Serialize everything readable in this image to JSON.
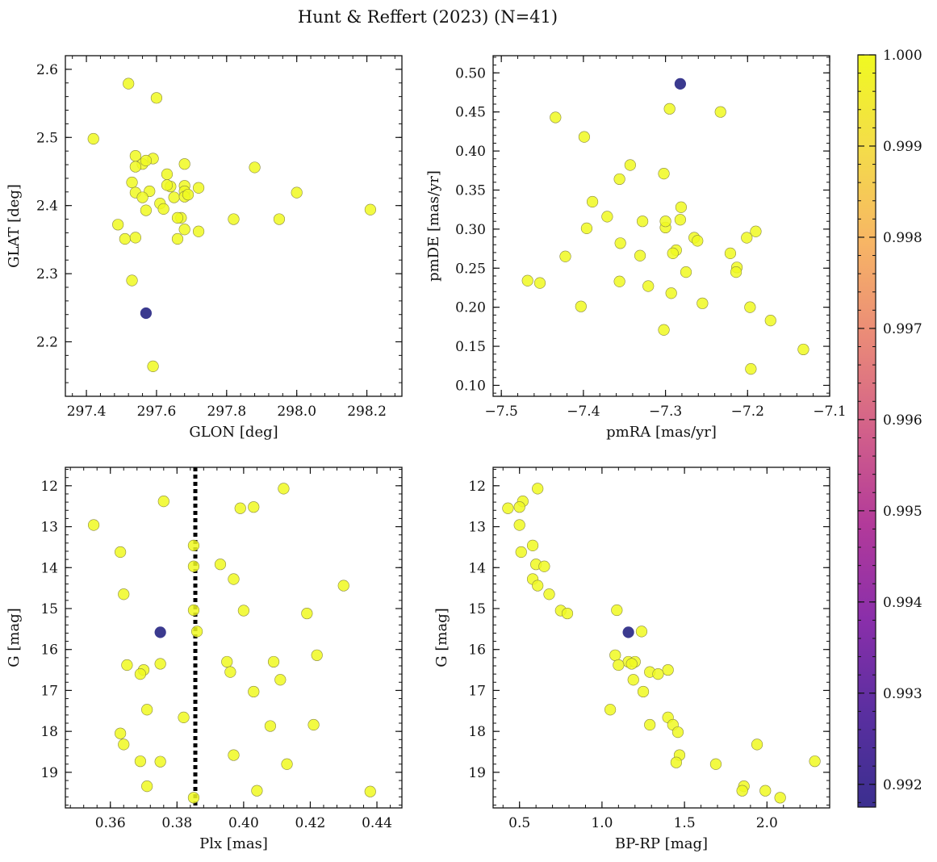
{
  "figure": {
    "title": "Hunt & Reffert (2023) (N=41)"
  },
  "colors": {
    "member_high": "#f0f921",
    "member_low": "#3b3a8f",
    "edge": "#8a8a40",
    "guide_line": "#000000",
    "colormap": [
      "#3b2f8f",
      "#5a2fa0",
      "#8a2faa",
      "#b23a9a",
      "#d2608a",
      "#ea8a78",
      "#f7b565",
      "#f4dc4a",
      "#f0f921"
    ]
  },
  "chart_data": [
    {
      "id": "sky",
      "type": "scatter",
      "xlabel": "GLON [deg]",
      "ylabel": "GLAT [deg]",
      "xlim": [
        297.34,
        298.3
      ],
      "ylim": [
        2.12,
        2.62
      ],
      "xticks": [
        297.4,
        297.6,
        297.8,
        298.0,
        298.2
      ],
      "yticks": [
        2.2,
        2.3,
        2.4,
        2.5,
        2.6
      ],
      "xtick_labels": [
        "297.4",
        "297.6",
        "297.8",
        "298.0",
        "298.2"
      ],
      "ytick_labels": [
        "2.2",
        "2.3",
        "2.4",
        "2.5",
        "2.6"
      ],
      "points": [
        [
          297.42,
          2.498,
          1.0
        ],
        [
          297.52,
          2.579,
          1.0
        ],
        [
          297.6,
          2.558,
          1.0
        ],
        [
          297.54,
          2.473,
          1.0
        ],
        [
          297.59,
          2.469,
          1.0
        ],
        [
          297.56,
          2.461,
          1.0
        ],
        [
          297.54,
          2.457,
          1.0
        ],
        [
          297.68,
          2.461,
          1.0
        ],
        [
          297.88,
          2.456,
          1.0
        ],
        [
          297.63,
          2.446,
          1.0
        ],
        [
          297.53,
          2.434,
          1.0
        ],
        [
          297.72,
          2.426,
          1.0
        ],
        [
          297.64,
          2.428,
          1.0
        ],
        [
          297.68,
          2.429,
          1.0
        ],
        [
          297.58,
          2.421,
          1.0
        ],
        [
          297.54,
          2.419,
          1.0
        ],
        [
          298.0,
          2.419,
          1.0
        ],
        [
          297.68,
          2.421,
          1.0
        ],
        [
          297.65,
          2.412,
          1.0
        ],
        [
          297.56,
          2.412,
          1.0
        ],
        [
          297.68,
          2.413,
          1.0
        ],
        [
          297.61,
          2.403,
          1.0
        ],
        [
          297.62,
          2.395,
          1.0
        ],
        [
          297.57,
          2.393,
          1.0
        ],
        [
          298.21,
          2.394,
          1.0
        ],
        [
          297.67,
          2.382,
          1.0
        ],
        [
          297.66,
          2.382,
          1.0
        ],
        [
          297.82,
          2.38,
          1.0
        ],
        [
          297.95,
          2.38,
          1.0
        ],
        [
          297.49,
          2.372,
          1.0
        ],
        [
          297.68,
          2.365,
          1.0
        ],
        [
          297.72,
          2.362,
          1.0
        ],
        [
          297.51,
          2.351,
          1.0
        ],
        [
          297.54,
          2.353,
          1.0
        ],
        [
          297.66,
          2.351,
          1.0
        ],
        [
          297.53,
          2.29,
          1.0
        ],
        [
          297.59,
          2.164,
          1.0
        ],
        [
          297.63,
          2.43,
          1.0
        ],
        [
          297.57,
          2.466,
          1.0
        ],
        [
          297.69,
          2.416,
          1.0
        ],
        [
          297.57,
          2.242,
          0.99
        ]
      ]
    },
    {
      "id": "pm",
      "type": "scatter",
      "xlabel": "pmRA [mas/yr]",
      "ylabel": "pmDE [mas/yr]",
      "xlim": [
        -7.51,
        -7.1
      ],
      "ylim": [
        0.086,
        0.522
      ],
      "xticks": [
        -7.5,
        -7.4,
        -7.3,
        -7.2,
        -7.1
      ],
      "yticks": [
        0.1,
        0.15,
        0.2,
        0.25,
        0.3,
        0.35,
        0.4,
        0.45,
        0.5
      ],
      "xtick_labels": [
        "−7.5",
        "−7.4",
        "−7.3",
        "−7.2",
        "−7.1"
      ],
      "ytick_labels": [
        "0.10",
        "0.15",
        "0.20",
        "0.25",
        "0.30",
        "0.35",
        "0.40",
        "0.45",
        "0.50"
      ],
      "points": [
        [
          -7.295,
          0.454,
          1.0
        ],
        [
          -7.233,
          0.45,
          1.0
        ],
        [
          -7.434,
          0.443,
          1.0
        ],
        [
          -7.399,
          0.418,
          1.0
        ],
        [
          -7.343,
          0.382,
          1.0
        ],
        [
          -7.302,
          0.371,
          1.0
        ],
        [
          -7.356,
          0.364,
          1.0
        ],
        [
          -7.389,
          0.335,
          1.0
        ],
        [
          -7.281,
          0.328,
          1.0
        ],
        [
          -7.371,
          0.316,
          1.0
        ],
        [
          -7.328,
          0.31,
          1.0
        ],
        [
          -7.282,
          0.312,
          1.0
        ],
        [
          -7.3,
          0.302,
          1.0
        ],
        [
          -7.396,
          0.301,
          1.0
        ],
        [
          -7.19,
          0.297,
          1.0
        ],
        [
          -7.265,
          0.289,
          1.0
        ],
        [
          -7.201,
          0.289,
          1.0
        ],
        [
          -7.261,
          0.285,
          1.0
        ],
        [
          -7.355,
          0.282,
          1.0
        ],
        [
          -7.287,
          0.273,
          1.0
        ],
        [
          -7.291,
          0.269,
          1.0
        ],
        [
          -7.221,
          0.269,
          1.0
        ],
        [
          -7.331,
          0.266,
          1.0
        ],
        [
          -7.422,
          0.265,
          1.0
        ],
        [
          -7.213,
          0.251,
          1.0
        ],
        [
          -7.214,
          0.245,
          1.0
        ],
        [
          -7.275,
          0.245,
          1.0
        ],
        [
          -7.468,
          0.234,
          1.0
        ],
        [
          -7.356,
          0.233,
          1.0
        ],
        [
          -7.453,
          0.231,
          1.0
        ],
        [
          -7.321,
          0.227,
          1.0
        ],
        [
          -7.293,
          0.218,
          1.0
        ],
        [
          -7.255,
          0.205,
          1.0
        ],
        [
          -7.403,
          0.201,
          1.0
        ],
        [
          -7.197,
          0.2,
          1.0
        ],
        [
          -7.172,
          0.183,
          1.0
        ],
        [
          -7.302,
          0.171,
          1.0
        ],
        [
          -7.132,
          0.146,
          1.0
        ],
        [
          -7.196,
          0.121,
          1.0
        ],
        [
          -7.3,
          0.31,
          1.0
        ],
        [
          -7.282,
          0.486,
          0.99
        ]
      ]
    },
    {
      "id": "plx",
      "type": "scatter",
      "xlabel": "Plx [mas]",
      "ylabel": "G [mag]",
      "xlim": [
        0.3465,
        0.4475
      ],
      "ylim": [
        19.87,
        11.55
      ],
      "xticks": [
        0.36,
        0.38,
        0.4,
        0.42,
        0.44
      ],
      "yticks": [
        12,
        13,
        14,
        15,
        16,
        17,
        18,
        19
      ],
      "xtick_labels": [
        "0.36",
        "0.38",
        "0.40",
        "0.42",
        "0.44"
      ],
      "ytick_labels": [
        "12",
        "13",
        "14",
        "15",
        "16",
        "17",
        "18",
        "19"
      ],
      "vline": 0.3855,
      "points": [
        [
          0.412,
          12.07,
          1.0
        ],
        [
          0.376,
          12.38,
          1.0
        ],
        [
          0.399,
          12.55,
          1.0
        ],
        [
          0.403,
          12.52,
          1.0
        ],
        [
          0.355,
          12.96,
          1.0
        ],
        [
          0.385,
          13.46,
          1.0
        ],
        [
          0.363,
          13.62,
          1.0
        ],
        [
          0.393,
          13.92,
          1.0
        ],
        [
          0.385,
          13.97,
          1.0
        ],
        [
          0.397,
          14.28,
          1.0
        ],
        [
          0.43,
          14.44,
          1.0
        ],
        [
          0.364,
          14.65,
          1.0
        ],
        [
          0.385,
          15.04,
          1.0
        ],
        [
          0.4,
          15.05,
          1.0
        ],
        [
          0.419,
          15.12,
          1.0
        ],
        [
          0.386,
          15.56,
          1.0
        ],
        [
          0.422,
          16.14,
          1.0
        ],
        [
          0.395,
          16.3,
          1.0
        ],
        [
          0.409,
          16.3,
          1.0
        ],
        [
          0.375,
          16.35,
          1.0
        ],
        [
          0.365,
          16.38,
          1.0
        ],
        [
          0.37,
          16.5,
          1.0
        ],
        [
          0.396,
          16.55,
          1.0
        ],
        [
          0.369,
          16.6,
          1.0
        ],
        [
          0.411,
          16.74,
          1.0
        ],
        [
          0.403,
          17.03,
          1.0
        ],
        [
          0.371,
          17.47,
          1.0
        ],
        [
          0.382,
          17.66,
          1.0
        ],
        [
          0.421,
          17.84,
          1.0
        ],
        [
          0.408,
          17.87,
          1.0
        ],
        [
          0.363,
          18.05,
          1.0
        ],
        [
          0.364,
          18.32,
          1.0
        ],
        [
          0.397,
          18.58,
          1.0
        ],
        [
          0.369,
          18.73,
          1.0
        ],
        [
          0.375,
          18.74,
          1.0
        ],
        [
          0.413,
          18.8,
          1.0
        ],
        [
          0.371,
          19.34,
          1.0
        ],
        [
          0.404,
          19.45,
          1.0
        ],
        [
          0.438,
          19.47,
          1.0
        ],
        [
          0.385,
          19.62,
          1.0
        ],
        [
          0.375,
          15.58,
          0.99
        ]
      ]
    },
    {
      "id": "cmd",
      "type": "scatter",
      "xlabel": "BP-RP [mag]",
      "ylabel": "G [mag]",
      "xlim": [
        0.34,
        2.38
      ],
      "ylim": [
        19.87,
        11.55
      ],
      "xticks": [
        0.5,
        1.0,
        1.5,
        2.0
      ],
      "yticks": [
        12,
        13,
        14,
        15,
        16,
        17,
        18,
        19
      ],
      "xtick_labels": [
        "0.5",
        "1.0",
        "1.5",
        "2.0"
      ],
      "ytick_labels": [
        "12",
        "13",
        "14",
        "15",
        "16",
        "17",
        "18",
        "19"
      ],
      "points": [
        [
          0.61,
          12.07,
          1.0
        ],
        [
          0.52,
          12.38,
          1.0
        ],
        [
          0.43,
          12.55,
          1.0
        ],
        [
          0.5,
          12.52,
          1.0
        ],
        [
          0.5,
          12.96,
          1.0
        ],
        [
          0.58,
          13.46,
          1.0
        ],
        [
          0.51,
          13.62,
          1.0
        ],
        [
          0.6,
          13.92,
          1.0
        ],
        [
          0.65,
          13.97,
          1.0
        ],
        [
          0.58,
          14.28,
          1.0
        ],
        [
          0.61,
          14.44,
          1.0
        ],
        [
          0.68,
          14.65,
          1.0
        ],
        [
          1.09,
          15.04,
          1.0
        ],
        [
          0.75,
          15.05,
          1.0
        ],
        [
          0.79,
          15.12,
          1.0
        ],
        [
          1.24,
          15.56,
          1.0
        ],
        [
          1.08,
          16.14,
          1.0
        ],
        [
          1.16,
          16.3,
          1.0
        ],
        [
          1.2,
          16.3,
          1.0
        ],
        [
          1.18,
          16.35,
          1.0
        ],
        [
          1.1,
          16.38,
          1.0
        ],
        [
          1.4,
          16.5,
          1.0
        ],
        [
          1.29,
          16.55,
          1.0
        ],
        [
          1.34,
          16.6,
          1.0
        ],
        [
          1.19,
          16.74,
          1.0
        ],
        [
          1.25,
          17.03,
          1.0
        ],
        [
          1.05,
          17.47,
          1.0
        ],
        [
          1.4,
          17.66,
          1.0
        ],
        [
          1.43,
          17.84,
          1.0
        ],
        [
          1.29,
          17.84,
          1.0
        ],
        [
          1.46,
          18.02,
          1.0
        ],
        [
          1.94,
          18.32,
          1.0
        ],
        [
          1.47,
          18.58,
          1.0
        ],
        [
          2.29,
          18.73,
          1.0
        ],
        [
          1.45,
          18.76,
          1.0
        ],
        [
          1.69,
          18.8,
          1.0
        ],
        [
          1.86,
          19.34,
          1.0
        ],
        [
          1.85,
          19.45,
          1.0
        ],
        [
          1.99,
          19.45,
          1.0
        ],
        [
          2.08,
          19.62,
          1.0
        ],
        [
          1.16,
          15.58,
          0.99
        ]
      ]
    },
    {
      "id": "colorbar",
      "type": "colorbar",
      "vmin": 0.99175,
      "vmax": 1.0,
      "ticks": [
        0.992,
        0.993,
        0.994,
        0.995,
        0.996,
        0.997,
        0.998,
        0.999,
        1.0
      ],
      "tick_labels": [
        "0.992",
        "0.993",
        "0.994",
        "0.995",
        "0.996",
        "0.997",
        "0.998",
        "0.999",
        "1.000"
      ]
    }
  ]
}
